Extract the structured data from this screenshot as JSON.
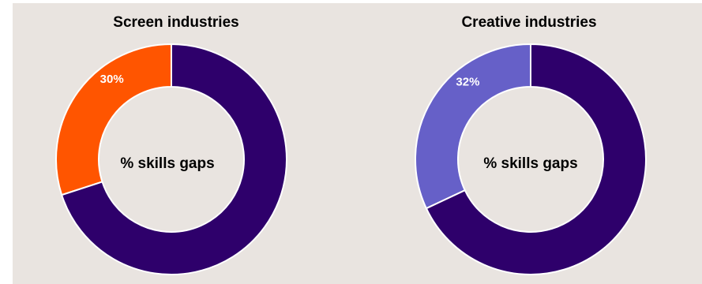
{
  "chart_data": [
    {
      "type": "pie",
      "title": "Screen industries",
      "center_label": "% skills gaps",
      "slices": [
        {
          "value": 30,
          "label": "30%",
          "color": "#ff5500"
        },
        {
          "value": 70,
          "label": "",
          "color": "#2e006b"
        }
      ]
    },
    {
      "type": "pie",
      "title": "Creative industries",
      "center_label": "% skills gaps",
      "slices": [
        {
          "value": 32,
          "label": "32%",
          "color": "#6660c8"
        },
        {
          "value": 68,
          "label": "",
          "color": "#2e006b"
        }
      ]
    }
  ]
}
